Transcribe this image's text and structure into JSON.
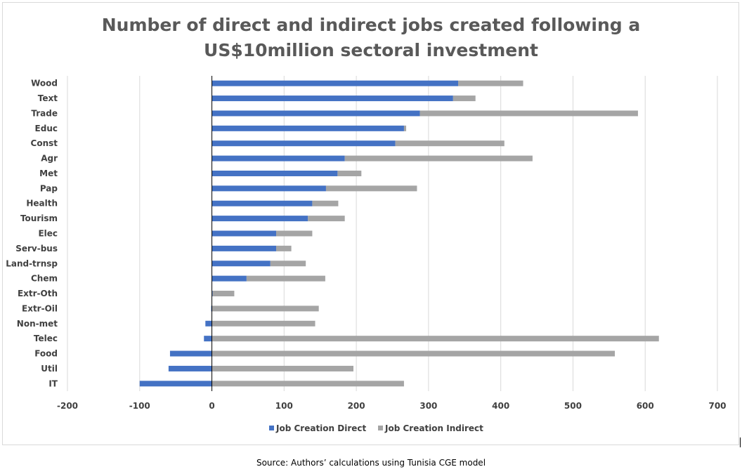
{
  "chart_data": {
    "type": "bar",
    "orientation": "horizontal",
    "stacked": true,
    "title_lines": [
      "Number of direct and indirect jobs created following a",
      "US$10million sectoral investment"
    ],
    "categories": [
      "Wood",
      "Text",
      "Trade",
      "Educ",
      "Const",
      "Agr",
      "Met",
      "Pap",
      "Health",
      "Tourism",
      "Elec",
      "Serv-bus",
      "Land-trnsp",
      "Chem",
      "Extr-Oth",
      "Extr-Oil",
      "Non-met",
      "Telec",
      "Food",
      "Util",
      "IT"
    ],
    "series": [
      {
        "name": "Job Creation Direct",
        "color": "#4472c4",
        "values": [
          341,
          334,
          288,
          266,
          254,
          184,
          174,
          158,
          139,
          133,
          89,
          89,
          81,
          48,
          1,
          -1,
          -9,
          -11,
          -58,
          -60,
          -100
        ]
      },
      {
        "name": "Job Creation Indirect",
        "color": "#a5a5a5",
        "values": [
          90,
          31,
          302,
          3,
          151,
          260,
          33,
          126,
          36,
          51,
          50,
          21,
          49,
          109,
          30,
          148,
          143,
          619,
          558,
          196,
          266
        ]
      }
    ],
    "xlim": [
      -200,
      700
    ],
    "xticks": [
      -200,
      -100,
      0,
      100,
      200,
      300,
      400,
      500,
      600,
      700
    ],
    "grid": true,
    "legend_position": "bottom",
    "source": "Source: Authors’ calculations using Tunisia CGE model"
  }
}
